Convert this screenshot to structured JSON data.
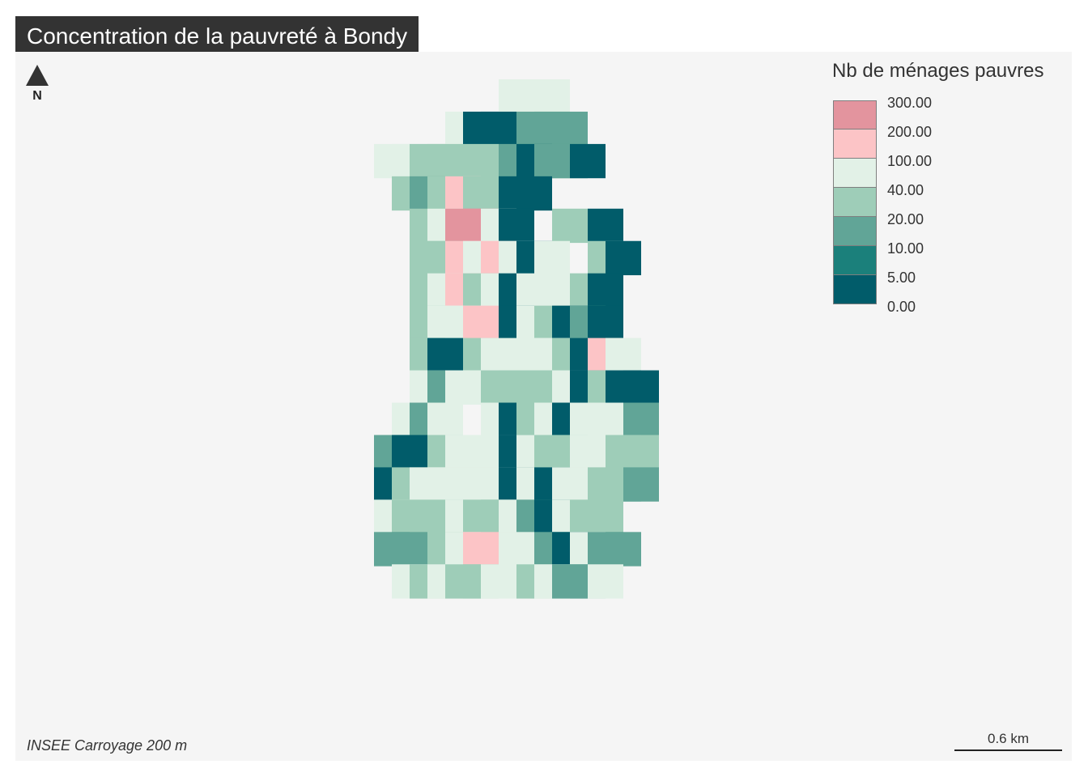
{
  "title": "Concentration de la pauvreté à Bondy",
  "north_label": "N",
  "legend": {
    "title": "Nb de ménages pauvres",
    "breaks": [
      "300.00",
      "200.00",
      "100.00",
      "40.00",
      "20.00",
      "10.00",
      "5.00",
      "0.00"
    ],
    "colors": [
      "#e3949e",
      "#fcc4c6",
      "#e2f1e7",
      "#9ecdb8",
      "#61a597",
      "#1b807b",
      "#015c6a"
    ]
  },
  "source_note": "INSEE Carroyage 200 m",
  "scale_bar": {
    "label": "0.6 km"
  },
  "colors": {
    "title_background": "#333333",
    "map_background": "#f5f5f5"
  },
  "chart_data": {
    "type": "heatmap",
    "classes": [
      "200.00-300.00",
      "100.00-200.00",
      "40.00-100.00",
      "20.00-40.00",
      "10.00-20.00",
      "5.00-10.00",
      "0.00-5.00"
    ],
    "cell_class_grid": [
      "    ...          ",
      "    .66 555   ",
      "  ..44 4 56556    ",
      "   45434 66       ",
      "   4.20.6  4 6    ",
      "   443.3.6.  46   ",
      "   4.14.6. .46    ",
      "   4..1 6.4656    ",
      "   46 4. ..463.   ",
      "   .5..4444.6466  ",
      "  .5.  .64.6...5 ",
      " 56 4...6.44..44  ",
      " 64.....6.6..445 ",
      " .4 4.44.56.44  ",
      " 55 4.1 . 56.55 ",
      "  .4.44..4.55.  "
    ]
  }
}
